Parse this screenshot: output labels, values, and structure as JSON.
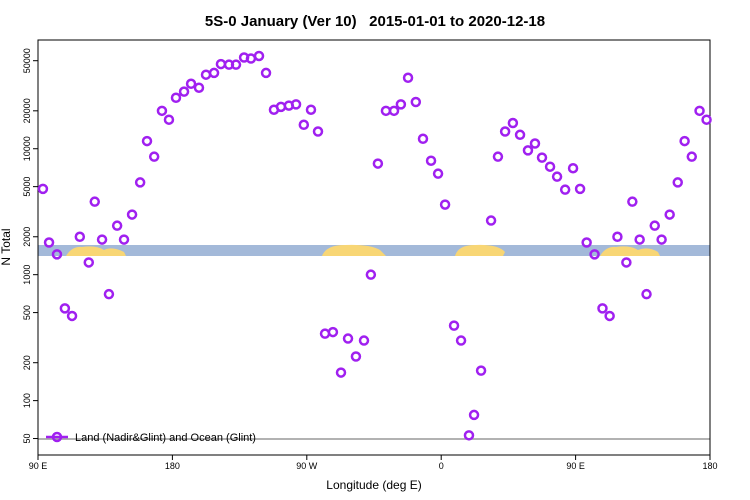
{
  "chart_data": {
    "type": "scatter",
    "title": "5S-0 January (Ver 10)   2015-01-01 to 2020-12-18",
    "x_label": "Longitude (deg E)",
    "y_label": "N Total",
    "log_y": true,
    "legend_position": "bottom-left",
    "xlim": [
      90,
      540
    ],
    "ylim": [
      37,
      73000
    ],
    "xticks": [
      {
        "value": 90,
        "label": "90 E"
      },
      180,
      {
        "value": 270,
        "label": "90 W"
      },
      {
        "value": 360,
        "label": "0"
      },
      {
        "value": 450,
        "label": "90 E"
      },
      {
        "value": 540,
        "label": "180"
      }
    ],
    "yticks": [
      50,
      100,
      200,
      500,
      1000,
      2000,
      5000,
      10000,
      20000,
      50000
    ],
    "series": [
      {
        "name": "Land (Nadir&Glint) and Ocean (Glint)",
        "color": "#a020f0",
        "x": [
          93.3,
          97.4,
          102.7,
          108,
          112.8,
          118,
          124,
          128,
          132.9,
          137.5,
          143,
          147.6,
          153,
          158.4,
          163,
          167.8,
          173,
          177.7,
          182.4,
          187.8,
          192.5,
          197.8,
          202.5,
          207.9,
          212.5,
          217.9,
          222.6,
          228,
          232.6,
          238,
          242.7,
          248,
          252.7,
          258,
          262.8,
          268,
          272.8,
          277.5,
          282.2,
          287.5,
          292.9,
          297.6,
          302.9,
          308.3,
          312.9,
          317.6,
          323,
          328.4,
          333,
          337.8,
          343,
          347.8,
          353.2,
          357.9,
          362.6,
          368.6,
          373.3,
          378.6,
          382,
          386.7,
          393.4,
          398,
          402.8,
          408,
          412.8,
          418.1,
          422.8,
          427.5,
          432.9,
          437.6,
          443,
          448.3,
          453,
          457.4,
          462.7,
          468,
          472.8,
          478,
          484,
          488,
          492.9,
          497.5,
          503,
          507.6,
          513,
          518.4,
          523,
          527.8,
          533,
          537.7
        ],
        "values": [
          4800,
          1800,
          1450,
          540,
          470,
          2000,
          1250,
          3800,
          1900,
          700,
          2450,
          1900,
          3000,
          5400,
          11500,
          8650,
          20000,
          17000,
          25400,
          28400,
          32800,
          30500,
          38700,
          40000,
          47000,
          46500,
          46500,
          53000,
          52000,
          54500,
          40000,
          20400,
          21500,
          22000,
          22500,
          15500,
          20400,
          13700,
          340,
          350,
          167,
          311,
          224,
          300,
          1000,
          7620,
          20000,
          20000,
          22500,
          36600,
          23500,
          12000,
          8030,
          6340,
          3600,
          394,
          300,
          53,
          77,
          173,
          2690,
          8650,
          13700,
          16000,
          12900,
          9700,
          11000,
          8500,
          7200,
          6000,
          4730,
          7000,
          4800,
          1800,
          1450,
          540,
          470,
          2000,
          1250,
          3800,
          1900,
          700,
          2450,
          1900,
          3000,
          5400,
          11500,
          8650,
          20000,
          17000
        ]
      }
    ]
  }
}
